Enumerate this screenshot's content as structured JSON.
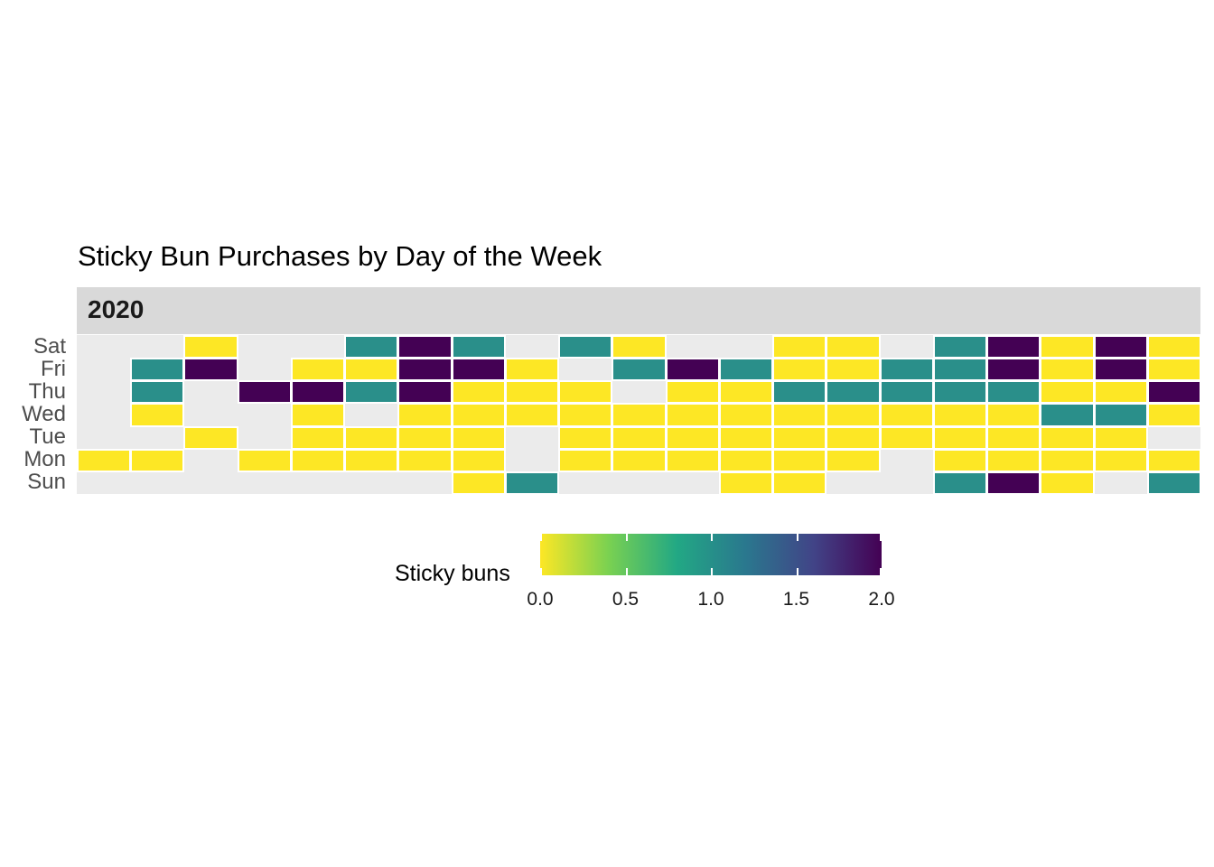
{
  "chart_data": {
    "type": "heatmap",
    "title": "Sticky Bun Purchases by Day of the Week",
    "facet": "2020",
    "y_categories": [
      "Sat",
      "Fri",
      "Thu",
      "Wed",
      "Tue",
      "Mon",
      "Sun"
    ],
    "x_count": 21,
    "values": [
      [
        null,
        null,
        0,
        null,
        null,
        1,
        2,
        1,
        null,
        1,
        0,
        null,
        null,
        0,
        0,
        null,
        1,
        2,
        0,
        2,
        0
      ],
      [
        null,
        1,
        2,
        null,
        0,
        0,
        2,
        2,
        0,
        null,
        1,
        2,
        1,
        0,
        0,
        1,
        1,
        2,
        0,
        2,
        0
      ],
      [
        null,
        1,
        null,
        2,
        2,
        1,
        2,
        0,
        0,
        0,
        null,
        0,
        0,
        1,
        1,
        1,
        1,
        1,
        0,
        0,
        2
      ],
      [
        null,
        0,
        null,
        null,
        0,
        null,
        0,
        0,
        0,
        0,
        0,
        0,
        0,
        0,
        0,
        0,
        0,
        0,
        1,
        1,
        0
      ],
      [
        null,
        null,
        0,
        null,
        0,
        0,
        0,
        0,
        null,
        0,
        0,
        0,
        0,
        0,
        0,
        0,
        0,
        0,
        0,
        0,
        null
      ],
      [
        0,
        0,
        null,
        0,
        0,
        0,
        0,
        0,
        null,
        0,
        0,
        0,
        0,
        0,
        0,
        null,
        0,
        0,
        0,
        0,
        0
      ],
      [
        null,
        null,
        null,
        null,
        null,
        null,
        null,
        0,
        1,
        null,
        null,
        null,
        0,
        0,
        null,
        null,
        1,
        2,
        0,
        null,
        1
      ]
    ],
    "legend": {
      "title": "Sticky buns",
      "min": 0,
      "max": 2,
      "tick_labels": [
        "0.0",
        "0.5",
        "1.0",
        "1.5",
        "2.0"
      ],
      "palette": [
        "#fde725",
        "#7ad151",
        "#22a884",
        "#2a788e",
        "#414487",
        "#440154"
      ],
      "placement": "bottom"
    },
    "colors": {
      "zero": "#fde725",
      "one": "#2a8f8a",
      "two": "#440154",
      "missing": "#ebebeb",
      "strip": "#d9d9d9"
    }
  }
}
